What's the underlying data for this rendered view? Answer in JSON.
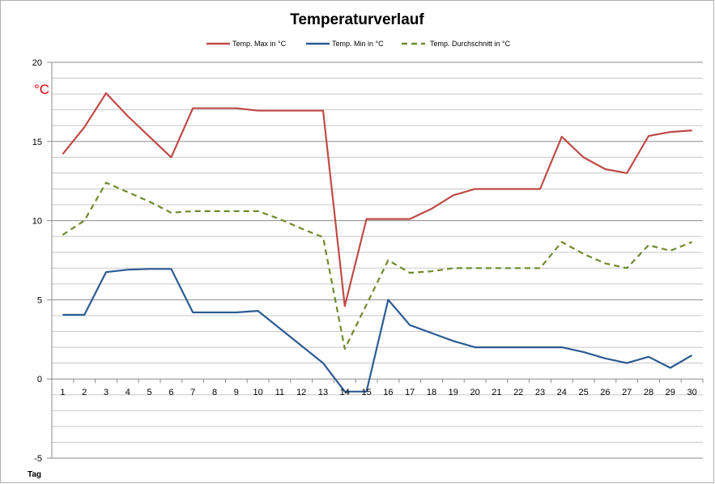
{
  "chart_data": {
    "type": "line",
    "title": "Temperaturverlauf",
    "xlabel": "Tag",
    "ylabel": "°C",
    "ylim": [
      -5,
      20
    ],
    "yticks": [
      20,
      15,
      10,
      5,
      0,
      -5
    ],
    "grid": true,
    "legend": "top",
    "x": [
      1,
      2,
      3,
      4,
      5,
      6,
      7,
      8,
      9,
      10,
      11,
      12,
      13,
      14,
      15,
      16,
      17,
      18,
      19,
      20,
      21,
      22,
      23,
      24,
      25,
      26,
      27,
      28,
      29,
      30
    ],
    "series": [
      {
        "name": "Temp. Max in °C",
        "color": "#be4b48",
        "dash": false,
        "values": [
          14.2,
          15.9,
          18.05,
          16.6,
          15.3,
          14.0,
          17.1,
          17.1,
          17.1,
          16.95,
          16.95,
          16.95,
          16.95,
          4.6,
          10.1,
          10.1,
          10.1,
          10.75,
          11.6,
          12.0,
          12.0,
          12.0,
          12.0,
          15.3,
          14.0,
          13.25,
          13.0,
          15.35,
          15.6,
          15.7
        ]
      },
      {
        "name": "Temp. Min in °C",
        "color": "#2c5b94",
        "dash": false,
        "values": [
          4.05,
          4.05,
          6.75,
          6.9,
          6.95,
          6.95,
          4.2,
          4.2,
          4.2,
          4.3,
          3.2,
          2.1,
          1.0,
          -0.8,
          -0.8,
          5.0,
          3.4,
          2.9,
          2.4,
          2.0,
          2.0,
          2.0,
          2.0,
          2.0,
          1.7,
          1.3,
          1.0,
          1.4,
          0.7,
          1.5
        ]
      },
      {
        "name": "Temp. Durchschnitt in °C",
        "color": "#6f8a2c",
        "dash": true,
        "values": [
          9.1,
          10.0,
          12.4,
          11.8,
          11.2,
          10.5,
          10.6,
          10.6,
          10.6,
          10.6,
          10.1,
          9.5,
          8.95,
          1.9,
          4.7,
          7.5,
          6.7,
          6.8,
          7.0,
          7.0,
          7.0,
          7.0,
          7.0,
          8.65,
          7.9,
          7.3,
          7.0,
          8.45,
          8.1,
          8.65
        ]
      }
    ]
  }
}
